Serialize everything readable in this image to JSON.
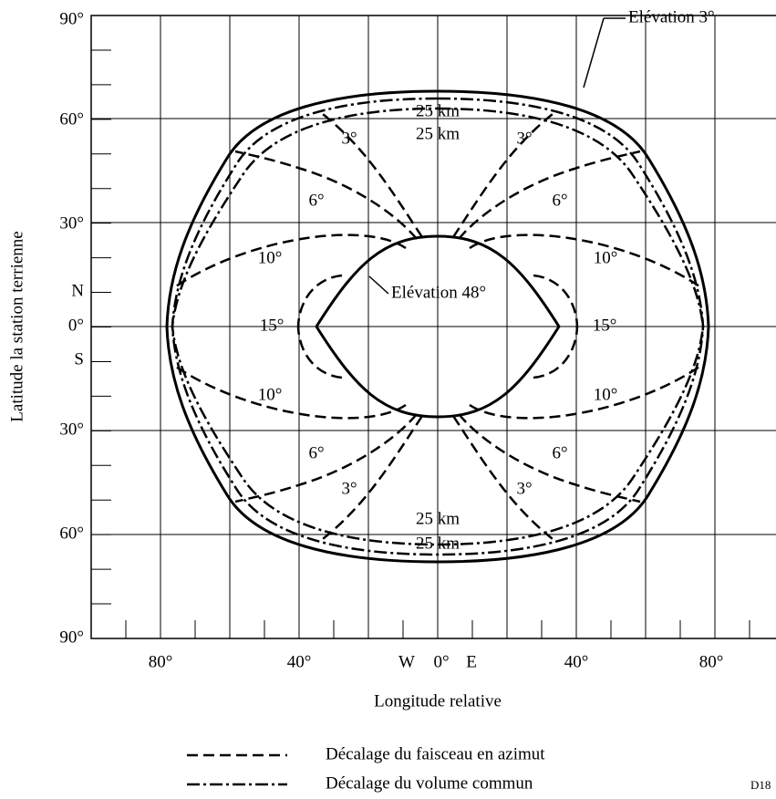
{
  "y_axis": {
    "label": "Latitude la station terrienne",
    "ticks": [
      "90°",
      "60°",
      "30°",
      "N",
      "0°",
      "S",
      "30°",
      "60°",
      "90°"
    ]
  },
  "x_axis": {
    "label": "Longitude relative",
    "ticks": [
      "80°",
      "40°",
      "W",
      "0°",
      "E",
      "40°",
      "80°"
    ]
  },
  "annotations": {
    "outer": "Elévation 3°",
    "inner": "Elévation 48°",
    "km": [
      "25 km",
      "25 km",
      "25 km",
      "25 km"
    ],
    "three": [
      "3°",
      "3°",
      "3°",
      "3°"
    ],
    "six": [
      "6°",
      "6°",
      "6°",
      "6°"
    ],
    "ten": [
      "10°",
      "10°",
      "10°",
      "10°"
    ],
    "fifteen": [
      "15°",
      "15°"
    ]
  },
  "legend": [
    "Décalage du faisceau en azimut",
    "Décalage du volume commun"
  ],
  "figure_id": "D18"
}
